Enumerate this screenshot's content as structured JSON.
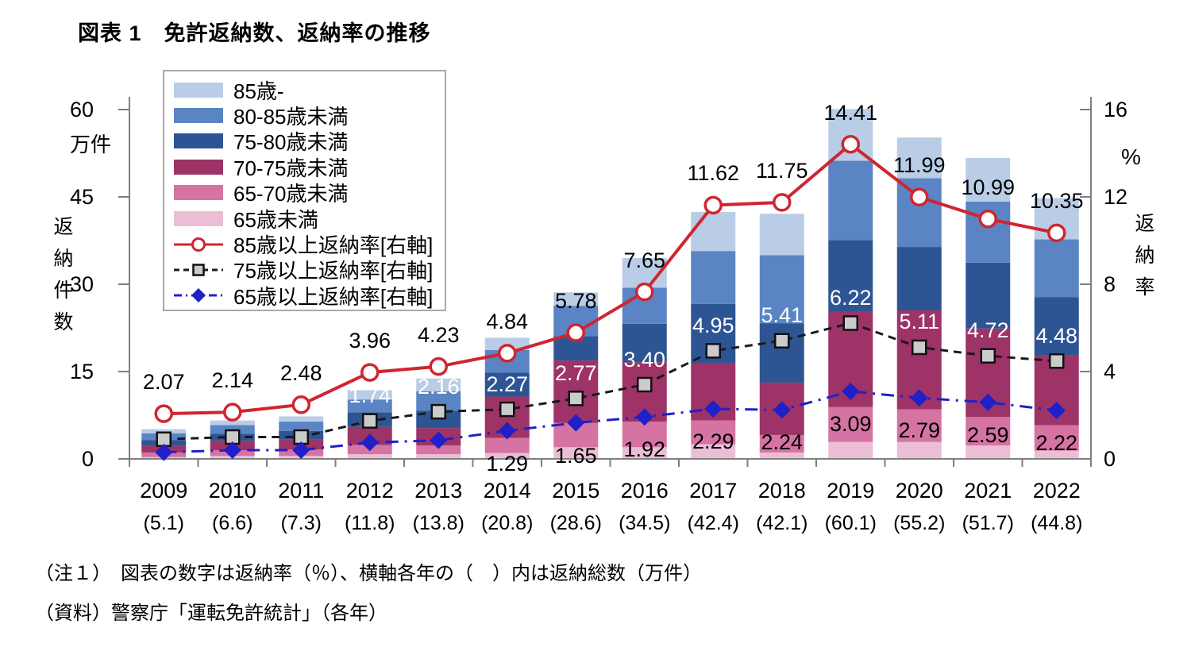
{
  "title": "図表 1　免許返納数、返納率の推移",
  "notes": [
    "（注１）　図表の数字は返納率（％）、横軸各年の（　）内は返納総数（万件）",
    "（資料）警察庁「運転免許統計」（各年）"
  ],
  "left_axis": {
    "vertical_label": "返納件数",
    "unit": "万件",
    "ticks": [
      0,
      15,
      30,
      45,
      60
    ],
    "max": 60
  },
  "right_axis": {
    "vertical_label": "返納率",
    "unit": "%",
    "ticks": [
      0,
      4,
      8,
      12,
      16
    ],
    "max": 16
  },
  "legend": {
    "bars": [
      {
        "label": "85歳-",
        "color": "#b9cde7"
      },
      {
        "label": "80-85歳未満",
        "color": "#5b84c4"
      },
      {
        "label": "75-80歳未満",
        "color": "#2e5593"
      },
      {
        "label": "70-75歳未満",
        "color": "#9d3367"
      },
      {
        "label": "65-70歳未満",
        "color": "#d573a3"
      },
      {
        "label": "65歳未満",
        "color": "#ecbed6"
      }
    ],
    "lines": [
      {
        "label": "85歳以上返納率[右軸]",
        "color": "#d02530",
        "style": "solid",
        "marker": "circle"
      },
      {
        "label": "75歳以上返納率[右軸]",
        "color": "#1a1a1a",
        "style": "dashed",
        "marker": "square"
      },
      {
        "label": "65歳以上返納率[右軸]",
        "color": "#2020c8",
        "style": "dashdot",
        "marker": "diamond"
      }
    ]
  },
  "chart_data": {
    "type": "bar",
    "subtype": "stacked bars (left axis, 万件) with 3 rate lines (right axis, %)",
    "categories": [
      "2009",
      "2010",
      "2011",
      "2012",
      "2013",
      "2014",
      "2015",
      "2016",
      "2017",
      "2018",
      "2019",
      "2020",
      "2021",
      "2022"
    ],
    "totals": [
      5.1,
      6.6,
      7.3,
      11.8,
      13.8,
      20.8,
      28.6,
      34.5,
      42.4,
      42.1,
      60.1,
      55.2,
      51.7,
      44.8
    ],
    "total_labels": [
      "(5.1)",
      "(6.6)",
      "(7.3)",
      "(11.8)",
      "(13.8)",
      "(20.8)",
      "(28.6)",
      "(34.5)",
      "(42.4)",
      "(42.1)",
      "(60.1)",
      "(55.2)",
      "(51.7)",
      "(44.8)"
    ],
    "series": [
      {
        "name": "under65",
        "label": "65歳未満",
        "color": "#ecbed6",
        "values": [
          0.3,
          0.5,
          0.5,
          0.8,
          0.8,
          1.0,
          2.0,
          2.0,
          2.5,
          1.1,
          2.9,
          2.9,
          2.3,
          1.4
        ]
      },
      {
        "name": "65-70",
        "label": "65-70歳未満",
        "color": "#d573a3",
        "values": [
          0.8,
          1.0,
          1.1,
          1.6,
          1.5,
          2.6,
          4.2,
          4.4,
          4.1,
          3.0,
          6.0,
          5.6,
          4.9,
          4.4
        ]
      },
      {
        "name": "70-75",
        "label": "70-75歳未満",
        "color": "#9d3367",
        "values": [
          1.1,
          1.6,
          1.8,
          3.1,
          3.0,
          7.1,
          10.7,
          10.2,
          9.9,
          9.0,
          16.4,
          17.0,
          15.2,
          12.0
        ]
      },
      {
        "name": "75-80",
        "label": "75-80歳未満",
        "color": "#2e5593",
        "values": [
          1.0,
          1.2,
          1.4,
          2.5,
          3.0,
          4.1,
          4.2,
          6.6,
          10.1,
          10.2,
          12.3,
          10.9,
          11.3,
          10.0
        ]
      },
      {
        "name": "80-85",
        "label": "80-85歳未満",
        "color": "#5b84c4",
        "values": [
          1.2,
          1.5,
          1.6,
          2.2,
          3.3,
          3.9,
          5.2,
          6.2,
          9.1,
          11.7,
          13.6,
          11.8,
          10.5,
          9.9
        ]
      },
      {
        "name": "85plus",
        "label": "85歳-",
        "color": "#b9cde7",
        "values": [
          0.7,
          0.8,
          0.9,
          1.6,
          2.2,
          2.1,
          2.3,
          5.1,
          6.7,
          7.1,
          8.9,
          7.0,
          7.5,
          7.1
        ]
      }
    ],
    "lines": [
      {
        "name": "rate85",
        "label": "85歳以上返納率[右軸]",
        "color": "#d02530",
        "style": "solid",
        "marker": "circle",
        "label_color": "#000000",
        "label_position": "above",
        "values": [
          2.07,
          2.14,
          2.48,
          3.96,
          4.23,
          4.84,
          5.78,
          7.65,
          11.62,
          11.75,
          14.41,
          11.99,
          10.99,
          10.35
        ],
        "labels": [
          "2.07",
          "2.14",
          "2.48",
          "3.96",
          "4.23",
          "4.84",
          "5.78",
          "7.65",
          "11.62",
          "11.75",
          "14.41",
          "11.99",
          "10.99",
          "10.35"
        ]
      },
      {
        "name": "rate75",
        "label": "75歳以上返納率[右軸]",
        "color": "#1a1a1a",
        "style": "dashed",
        "marker": "square",
        "label_color": "#ffffff",
        "label_position": "above",
        "values": [
          0.9,
          1.0,
          1.0,
          1.74,
          2.16,
          2.27,
          2.77,
          3.4,
          4.95,
          5.41,
          6.22,
          5.11,
          4.72,
          4.48
        ],
        "labels": [
          "",
          "",
          "",
          "1.74",
          "2.16",
          "2.27",
          "2.77",
          "3.40",
          "4.95",
          "5.41",
          "6.22",
          "5.11",
          "4.72",
          "4.48"
        ]
      },
      {
        "name": "rate65",
        "label": "65歳以上返納率[右軸]",
        "color": "#2020c8",
        "style": "dashdot",
        "marker": "diamond",
        "label_color": "#000000",
        "label_position": "below",
        "values": [
          0.3,
          0.4,
          0.4,
          0.75,
          0.85,
          1.29,
          1.65,
          1.92,
          2.29,
          2.24,
          3.09,
          2.79,
          2.59,
          2.22
        ],
        "labels": [
          "",
          "",
          "",
          "",
          "",
          "1.29",
          "1.65",
          "1.92",
          "2.29",
          "2.24",
          "3.09",
          "2.79",
          "2.59",
          "2.22"
        ]
      }
    ],
    "xlabel": "",
    "ylabel_left": "返納件数(万件)",
    "ylabel_right": "返納率(%)",
    "ylim_left": [
      0,
      60
    ],
    "ylim_right": [
      0,
      16
    ],
    "grid": false,
    "legend_position": "upper-left box"
  }
}
